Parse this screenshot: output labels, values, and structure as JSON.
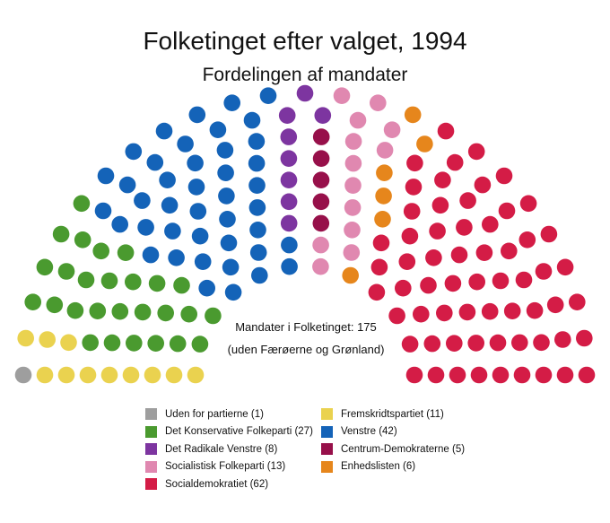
{
  "title": "Folketinget efter valget, 1994",
  "subtitle": "Fordelingen af mandater",
  "center_text": {
    "seats": "Mandater i Folketinget: 175",
    "note": "(uden Færøerne og Grønland)"
  },
  "legend": [
    {
      "label": "Uden for partierne (1)",
      "color": "#9e9e9e"
    },
    {
      "label": "Fremskridtspartiet (11)",
      "color": "#ead24f"
    },
    {
      "label": "Det Konservative Folkeparti (27)",
      "color": "#4a9a2f"
    },
    {
      "label": "Venstre (42)",
      "color": "#1463b8"
    },
    {
      "label": "Det Radikale Venstre (8)",
      "color": "#7d35a0"
    },
    {
      "label": "Centrum-Demokraterne (5)",
      "color": "#97104a"
    },
    {
      "label": "Socialistisk Folkeparti (13)",
      "color": "#e088b0"
    },
    {
      "label": "Enhedslisten (6)",
      "color": "#e6861c"
    },
    {
      "label": "Socialdemokratiet (62)",
      "color": "#d41c46"
    }
  ],
  "chart_data": {
    "type": "parliament",
    "total_seats": 175,
    "parties": [
      {
        "name": "Uden for partierne",
        "seats": 1,
        "color": "#9e9e9e"
      },
      {
        "name": "Fremskridtspartiet",
        "seats": 11,
        "color": "#ead24f"
      },
      {
        "name": "Det Konservative Folkeparti",
        "seats": 27,
        "color": "#4a9a2f"
      },
      {
        "name": "Venstre",
        "seats": 42,
        "color": "#1463b8"
      },
      {
        "name": "Det Radikale Venstre",
        "seats": 8,
        "color": "#7d35a0"
      },
      {
        "name": "Centrum-Demokraterne",
        "seats": 5,
        "color": "#97104a"
      },
      {
        "name": "Socialistisk Folkeparti",
        "seats": 13,
        "color": "#e088b0"
      },
      {
        "name": "Enhedslisten",
        "seats": 6,
        "color": "#e6861c"
      },
      {
        "name": "Socialdemokratiet",
        "seats": 62,
        "color": "#d41c46"
      }
    ]
  }
}
